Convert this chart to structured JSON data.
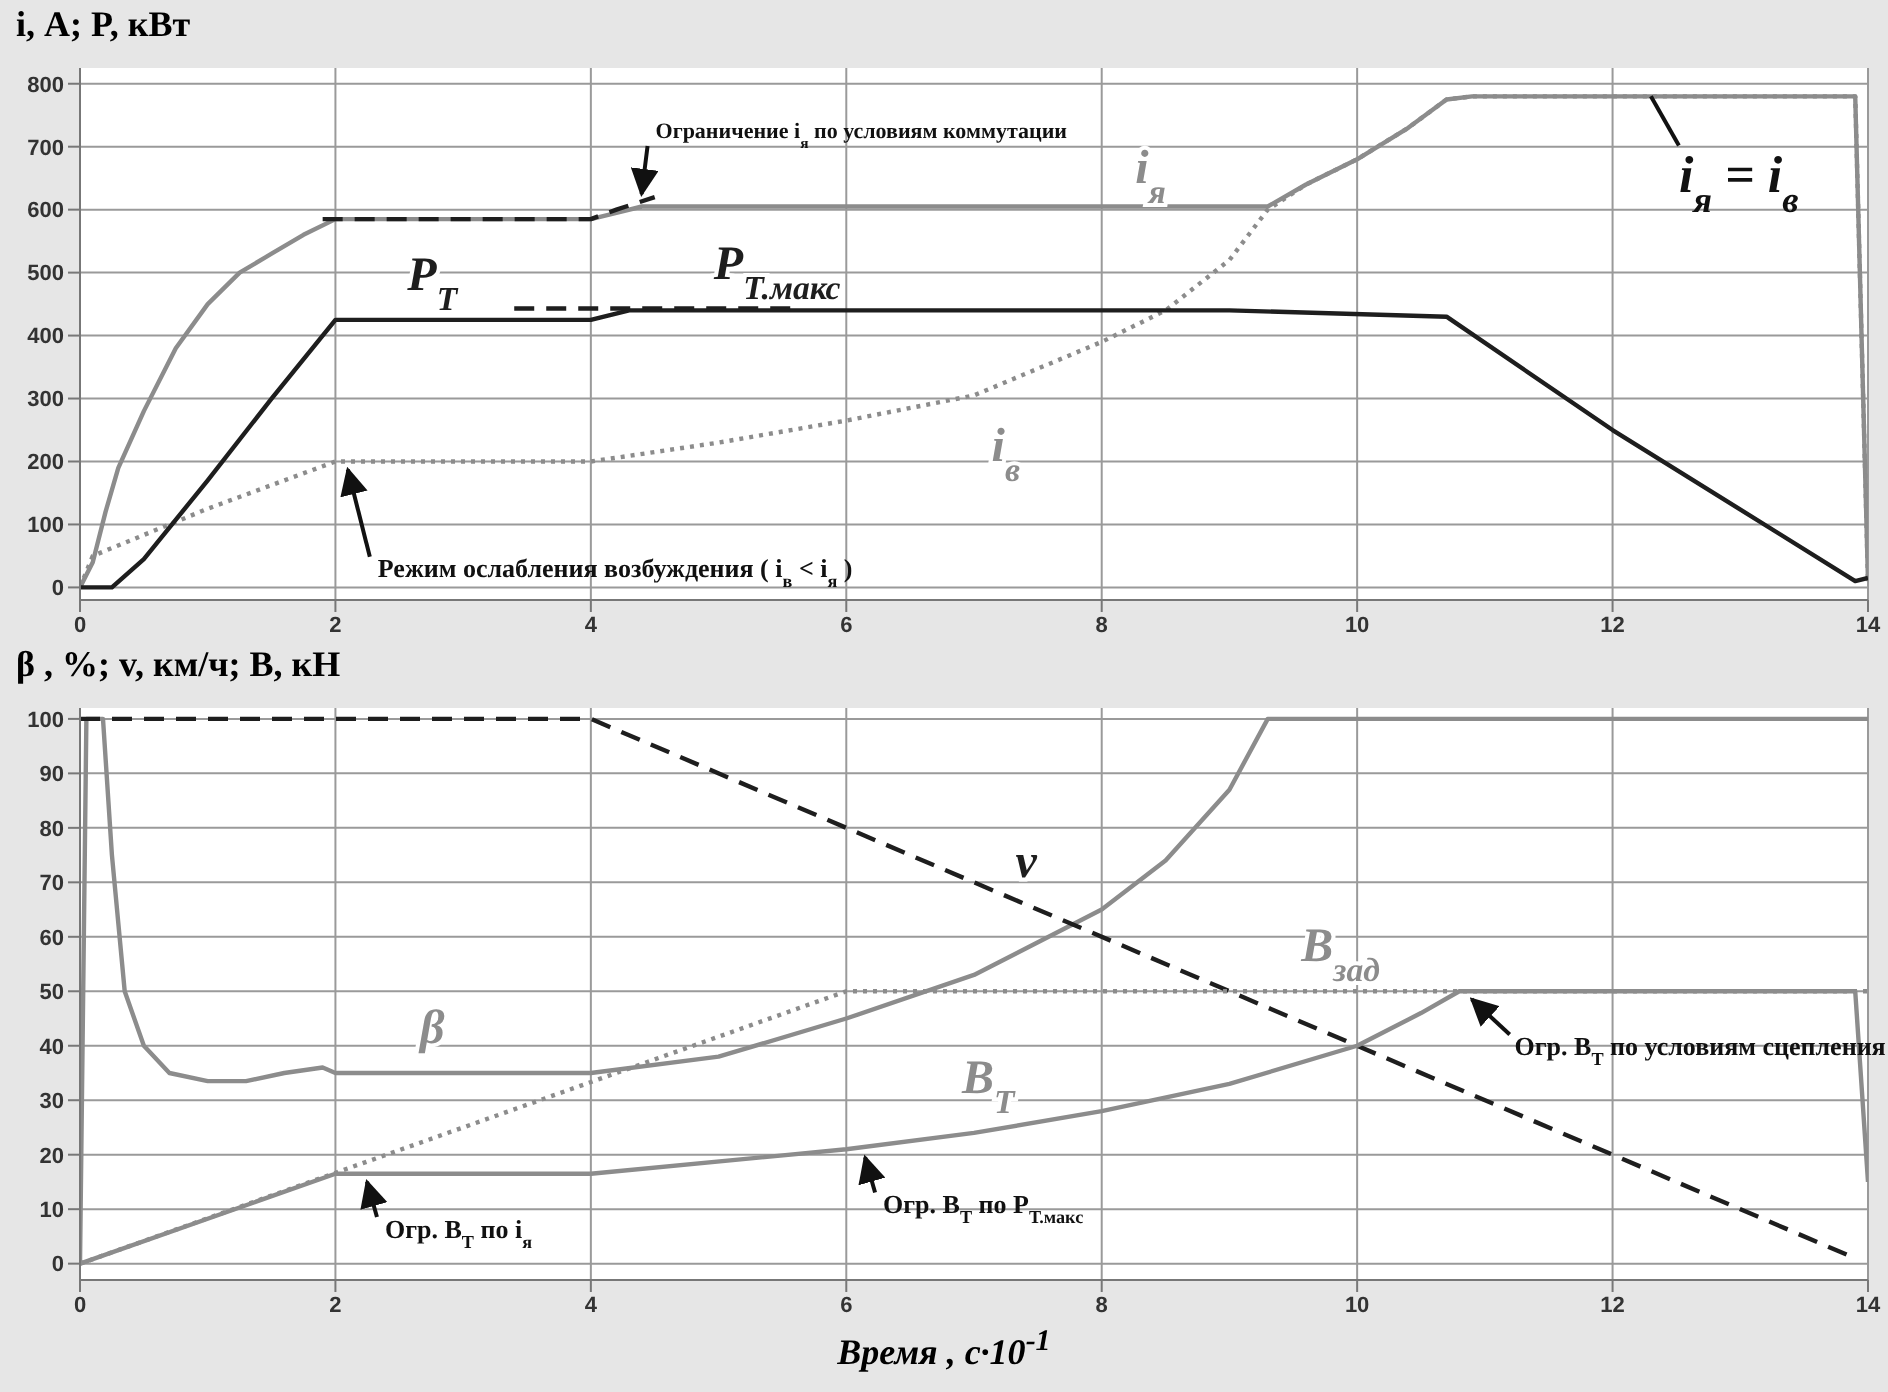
{
  "chart_data": [
    {
      "type": "line",
      "ylabel": "i, А; P, кВт",
      "xlim": [
        0,
        14
      ],
      "xticks": [
        0,
        2,
        4,
        6,
        8,
        10,
        12,
        14
      ],
      "ylim": [
        -20,
        825
      ],
      "yticks": [
        0,
        100,
        200,
        300,
        400,
        500,
        600,
        700,
        800
      ],
      "grid": true,
      "series": [
        {
          "name": "i$_{я}$",
          "color": "#8c8c8c",
          "line_style": "solid",
          "x": [
            0,
            0.1,
            0.2,
            0.3,
            0.5,
            0.75,
            1,
            1.25,
            1.5,
            1.75,
            2,
            3,
            4,
            4.2,
            4.4,
            6,
            8,
            9.3,
            9.6,
            10,
            10.4,
            10.7,
            10.9,
            13.9,
            14
          ],
          "values": [
            0,
            40,
            120,
            190,
            280,
            380,
            450,
            500,
            530,
            560,
            585,
            585,
            585,
            595,
            605,
            605,
            605,
            605,
            640,
            680,
            730,
            775,
            780,
            780,
            10
          ]
        },
        {
          "name": "i$_{в}$",
          "color": "#8c8c8c",
          "line_style": "dotted",
          "x": [
            0,
            0.1,
            1,
            2,
            3,
            4,
            5,
            6,
            7,
            8,
            8.5,
            9,
            9.3,
            9.6,
            10,
            10.4,
            10.7,
            10.9,
            13.9,
            14
          ],
          "values": [
            0,
            50,
            125,
            200,
            200,
            200,
            230,
            265,
            305,
            390,
            440,
            520,
            600,
            640,
            680,
            730,
            775,
            780,
            780,
            10
          ]
        },
        {
          "name": "P$_{Т}$",
          "color": "#1e1e1e",
          "line_style": "solid",
          "x": [
            0,
            0.25,
            0.5,
            1,
            1.5,
            2,
            4,
            4.3,
            9,
            10.7,
            12,
            13.9,
            14
          ],
          "values": [
            0,
            0,
            45,
            170,
            300,
            425,
            425,
            440,
            440,
            430,
            250,
            10,
            15
          ]
        },
        {
          "name": "P$_{Т.макс}$",
          "color": "#1e1e1e",
          "line_style": "dashed",
          "x": [
            3.4,
            5.6
          ],
          "values": [
            443,
            443
          ]
        },
        {
          "color": "#1e1e1e",
          "line_style": "dashed",
          "x": [
            1.9,
            4,
            4.2,
            4.5
          ],
          "values": [
            585,
            585,
            600,
            620
          ]
        }
      ],
      "annotations": [
        {
          "text": "Ограничение i$_{я}$ по условиям коммутации",
          "x": 4.35,
          "y": 612
        },
        {
          "text": "i$_{я}$ = i$_{в}$",
          "x": 12.3,
          "y": 780
        },
        {
          "text": "Режим ослабления возбуждения ( i$_{в}$ < i$_{я}$ )",
          "x": 2.05,
          "y": 200
        }
      ]
    },
    {
      "type": "line",
      "ylabel": "β , %; v, км/ч; B, кН",
      "xlabel": "Время , с·10$^{-1}$",
      "xlim": [
        0,
        14
      ],
      "xticks": [
        0,
        2,
        4,
        6,
        8,
        10,
        12,
        14
      ],
      "ylim": [
        -3,
        102
      ],
      "yticks": [
        0,
        10,
        20,
        30,
        40,
        50,
        60,
        70,
        80,
        90,
        100
      ],
      "grid": true,
      "series": [
        {
          "name": "β",
          "color": "#8c8c8c",
          "line_style": "solid",
          "x": [
            0,
            0.05,
            0.1,
            0.18,
            0.25,
            0.35,
            0.5,
            0.7,
            1,
            1.3,
            1.6,
            1.9,
            2,
            4,
            5,
            6,
            7,
            8,
            8.5,
            9,
            9.3,
            14
          ],
          "values": [
            0,
            100,
            100,
            100,
            75,
            50,
            40,
            35,
            33.5,
            33.5,
            35,
            36,
            35,
            35,
            38,
            45,
            53,
            65,
            74,
            87,
            100,
            100
          ]
        },
        {
          "name": "v",
          "color": "#1e1e1e",
          "line_style": "dashed",
          "x": [
            0,
            4,
            13.9
          ],
          "values": [
            100,
            100,
            1
          ]
        },
        {
          "name": "B$_{зад}$",
          "color": "#8c8c8c",
          "line_style": "dotted",
          "x": [
            0,
            6,
            14
          ],
          "values": [
            0,
            50,
            50
          ]
        },
        {
          "name": "B$_{Т}$",
          "color": "#8c8c8c",
          "line_style": "solid",
          "x": [
            0,
            2,
            4,
            6,
            7,
            8,
            9,
            10,
            10.5,
            10.8,
            13.9,
            14
          ],
          "values": [
            0,
            16.5,
            16.5,
            21,
            24,
            28,
            33,
            40,
            46,
            50,
            50,
            15
          ]
        }
      ],
      "annotations": [
        {
          "text": "Огр. B$_{Т}$ по i$_{я}$",
          "x": 2.2,
          "y": 16.5
        },
        {
          "text": "Огр. B$_{Т}$ по P$_{Т.макс}$",
          "x": 6.1,
          "y": 21
        },
        {
          "text": "Огр. B$_{Т}$ по условиям сцепления",
          "x": 10.85,
          "y": 50
        }
      ]
    }
  ]
}
